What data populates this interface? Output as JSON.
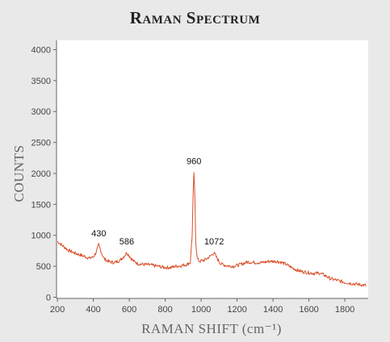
{
  "chart_data": {
    "type": "line",
    "title": "Raman Spectrum",
    "xlabel": "RAMAN SHIFT (cm⁻¹)",
    "ylabel": "COUNTS",
    "xlim": [
      195,
      1930
    ],
    "ylim": [
      -20,
      4150
    ],
    "x_ticks": [
      200,
      400,
      600,
      800,
      1000,
      1200,
      1400,
      1600,
      1800
    ],
    "y_ticks": [
      0,
      500,
      1000,
      1500,
      2000,
      2500,
      3000,
      3500,
      4000
    ],
    "grid": false,
    "line_color": "#d9502a",
    "series": [
      {
        "points": [
          [
            200,
            900
          ],
          [
            230,
            830
          ],
          [
            260,
            760
          ],
          [
            290,
            720
          ],
          [
            320,
            690
          ],
          [
            350,
            660
          ],
          [
            380,
            630
          ],
          [
            400,
            650
          ],
          [
            415,
            720
          ],
          [
            430,
            850
          ],
          [
            445,
            720
          ],
          [
            460,
            620
          ],
          [
            490,
            570
          ],
          [
            520,
            560
          ],
          [
            550,
            600
          ],
          [
            570,
            660
          ],
          [
            586,
            720
          ],
          [
            600,
            670
          ],
          [
            620,
            590
          ],
          [
            650,
            540
          ],
          [
            680,
            530
          ],
          [
            720,
            520
          ],
          [
            760,
            500
          ],
          [
            800,
            480
          ],
          [
            830,
            480
          ],
          [
            860,
            500
          ],
          [
            890,
            510
          ],
          [
            920,
            530
          ],
          [
            940,
            560
          ],
          [
            950,
            1000
          ],
          [
            955,
            1600
          ],
          [
            960,
            2020
          ],
          [
            965,
            1600
          ],
          [
            970,
            900
          ],
          [
            978,
            630
          ],
          [
            990,
            580
          ],
          [
            1020,
            600
          ],
          [
            1050,
            660
          ],
          [
            1072,
            720
          ],
          [
            1090,
            620
          ],
          [
            1110,
            540
          ],
          [
            1140,
            510
          ],
          [
            1180,
            500
          ],
          [
            1220,
            530
          ],
          [
            1260,
            570
          ],
          [
            1300,
            560
          ],
          [
            1340,
            560
          ],
          [
            1380,
            580
          ],
          [
            1420,
            580
          ],
          [
            1450,
            560
          ],
          [
            1480,
            520
          ],
          [
            1510,
            470
          ],
          [
            1540,
            430
          ],
          [
            1570,
            410
          ],
          [
            1600,
            395
          ],
          [
            1630,
            385
          ],
          [
            1660,
            390
          ],
          [
            1690,
            350
          ],
          [
            1720,
            300
          ],
          [
            1760,
            270
          ],
          [
            1800,
            240
          ],
          [
            1840,
            220
          ],
          [
            1880,
            205
          ],
          [
            1920,
            190
          ]
        ]
      }
    ],
    "peak_annotations": [
      {
        "x": 430,
        "y": 850,
        "label": "430"
      },
      {
        "x": 586,
        "y": 720,
        "label": "586"
      },
      {
        "x": 960,
        "y": 2020,
        "label": "960"
      },
      {
        "x": 1072,
        "y": 720,
        "label": "1072"
      }
    ]
  }
}
